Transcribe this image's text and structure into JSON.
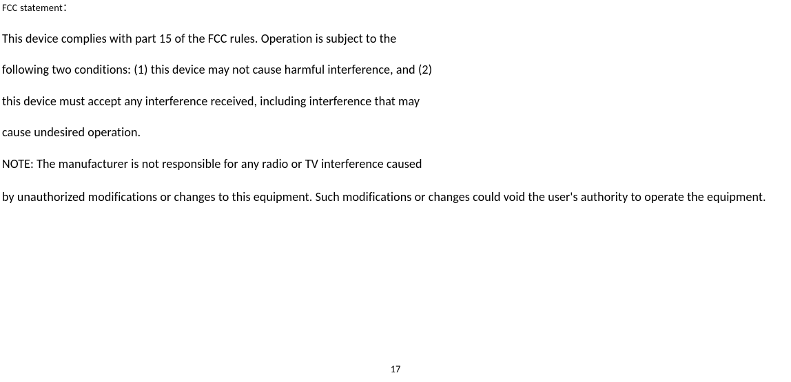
{
  "header": "FCC statement：",
  "line1": "This device complies with part 15 of the FCC rules. Operation is subject to the",
  "line2": "following two conditions: (1) this device may not cause harmful interference, and (2)",
  "line3": "this device must accept any interference received, including interference that may",
  "line4": "cause undesired operation.",
  "line5": "NOTE: The manufacturer is not responsible for any radio or TV interference caused",
  "line6": "by unauthorized modifications or changes to this equipment. Such modifications or changes could void the user's authority to operate the equipment.",
  "pageNumber": "17"
}
